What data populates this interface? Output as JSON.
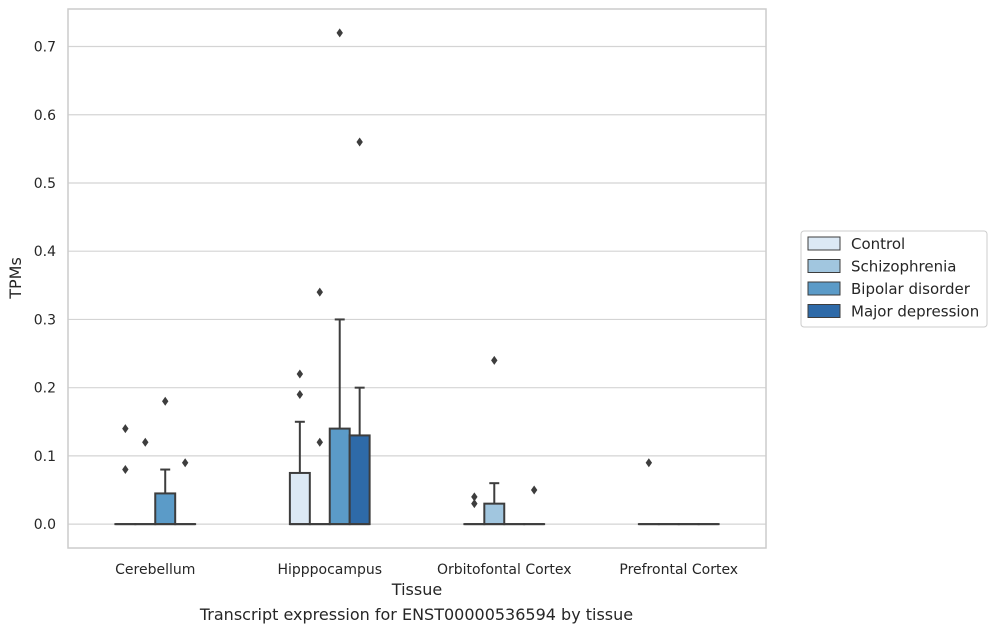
{
  "caption": "Transcript expression for ENST00000536594 by tissue",
  "chart_data": {
    "type": "box",
    "xlabel": "Tissue",
    "ylabel": "TPMs",
    "ylim": [
      -0.035,
      0.755
    ],
    "yticks": [
      0.0,
      0.1,
      0.2,
      0.3,
      0.4,
      0.5,
      0.6,
      0.7
    ],
    "ytick_labels": [
      "0.0",
      "0.1",
      "0.2",
      "0.3",
      "0.4",
      "0.5",
      "0.6",
      "0.7"
    ],
    "grid": "horizontal",
    "legend_position": "right",
    "categories": [
      "Cerebellum",
      "Hipppocampus",
      "Orbitofontal Cortex",
      "Prefrontal Cortex"
    ],
    "series": [
      {
        "name": "Control",
        "color": "#dce9f5",
        "boxes": [
          {
            "q1": 0,
            "median": 0,
            "q3": 0,
            "whislo": 0,
            "whishi": 0,
            "fliers": [
              0.08,
              0.14
            ]
          },
          {
            "q1": 0,
            "median": 0,
            "q3": 0.075,
            "whislo": 0,
            "whishi": 0.15,
            "fliers": [
              0.19,
              0.22
            ]
          },
          {
            "q1": 0,
            "median": 0,
            "q3": 0,
            "whislo": 0,
            "whishi": 0,
            "fliers": [
              0.03,
              0.04
            ]
          },
          {
            "q1": 0,
            "median": 0,
            "q3": 0,
            "whislo": 0,
            "whishi": 0,
            "fliers": [
              0.09
            ]
          }
        ]
      },
      {
        "name": "Schizophrenia",
        "color": "#a1c6df",
        "boxes": [
          {
            "q1": 0,
            "median": 0,
            "q3": 0,
            "whislo": 0,
            "whishi": 0,
            "fliers": [
              0.12
            ]
          },
          {
            "q1": 0,
            "median": 0,
            "q3": 0,
            "whislo": 0,
            "whishi": 0,
            "fliers": [
              0.12,
              0.34
            ]
          },
          {
            "q1": 0,
            "median": 0,
            "q3": 0.03,
            "whislo": 0,
            "whishi": 0.06,
            "fliers": [
              0.24
            ]
          },
          {
            "q1": 0,
            "median": 0,
            "q3": 0,
            "whislo": 0,
            "whishi": 0,
            "fliers": []
          }
        ]
      },
      {
        "name": "Bipolar disorder",
        "color": "#5b9bc8",
        "boxes": [
          {
            "q1": 0,
            "median": 0,
            "q3": 0.045,
            "whislo": 0,
            "whishi": 0.08,
            "fliers": [
              0.18
            ]
          },
          {
            "q1": 0,
            "median": 0,
            "q3": 0.14,
            "whislo": 0,
            "whishi": 0.3,
            "fliers": [
              0.72
            ]
          },
          {
            "q1": 0,
            "median": 0,
            "q3": 0,
            "whislo": 0,
            "whishi": 0,
            "fliers": []
          },
          {
            "q1": 0,
            "median": 0,
            "q3": 0,
            "whislo": 0,
            "whishi": 0,
            "fliers": []
          }
        ]
      },
      {
        "name": "Major depression",
        "color": "#2e6aa8",
        "boxes": [
          {
            "q1": 0,
            "median": 0,
            "q3": 0,
            "whislo": 0,
            "whishi": 0,
            "fliers": [
              0.09
            ]
          },
          {
            "q1": 0,
            "median": 0,
            "q3": 0.13,
            "whislo": 0,
            "whishi": 0.2,
            "fliers": [
              0.56
            ]
          },
          {
            "q1": 0,
            "median": 0,
            "q3": 0,
            "whislo": 0,
            "whishi": 0,
            "fliers": [
              0.05
            ]
          },
          {
            "q1": 0,
            "median": 0,
            "q3": 0,
            "whislo": 0,
            "whishi": 0,
            "fliers": []
          }
        ]
      }
    ]
  }
}
